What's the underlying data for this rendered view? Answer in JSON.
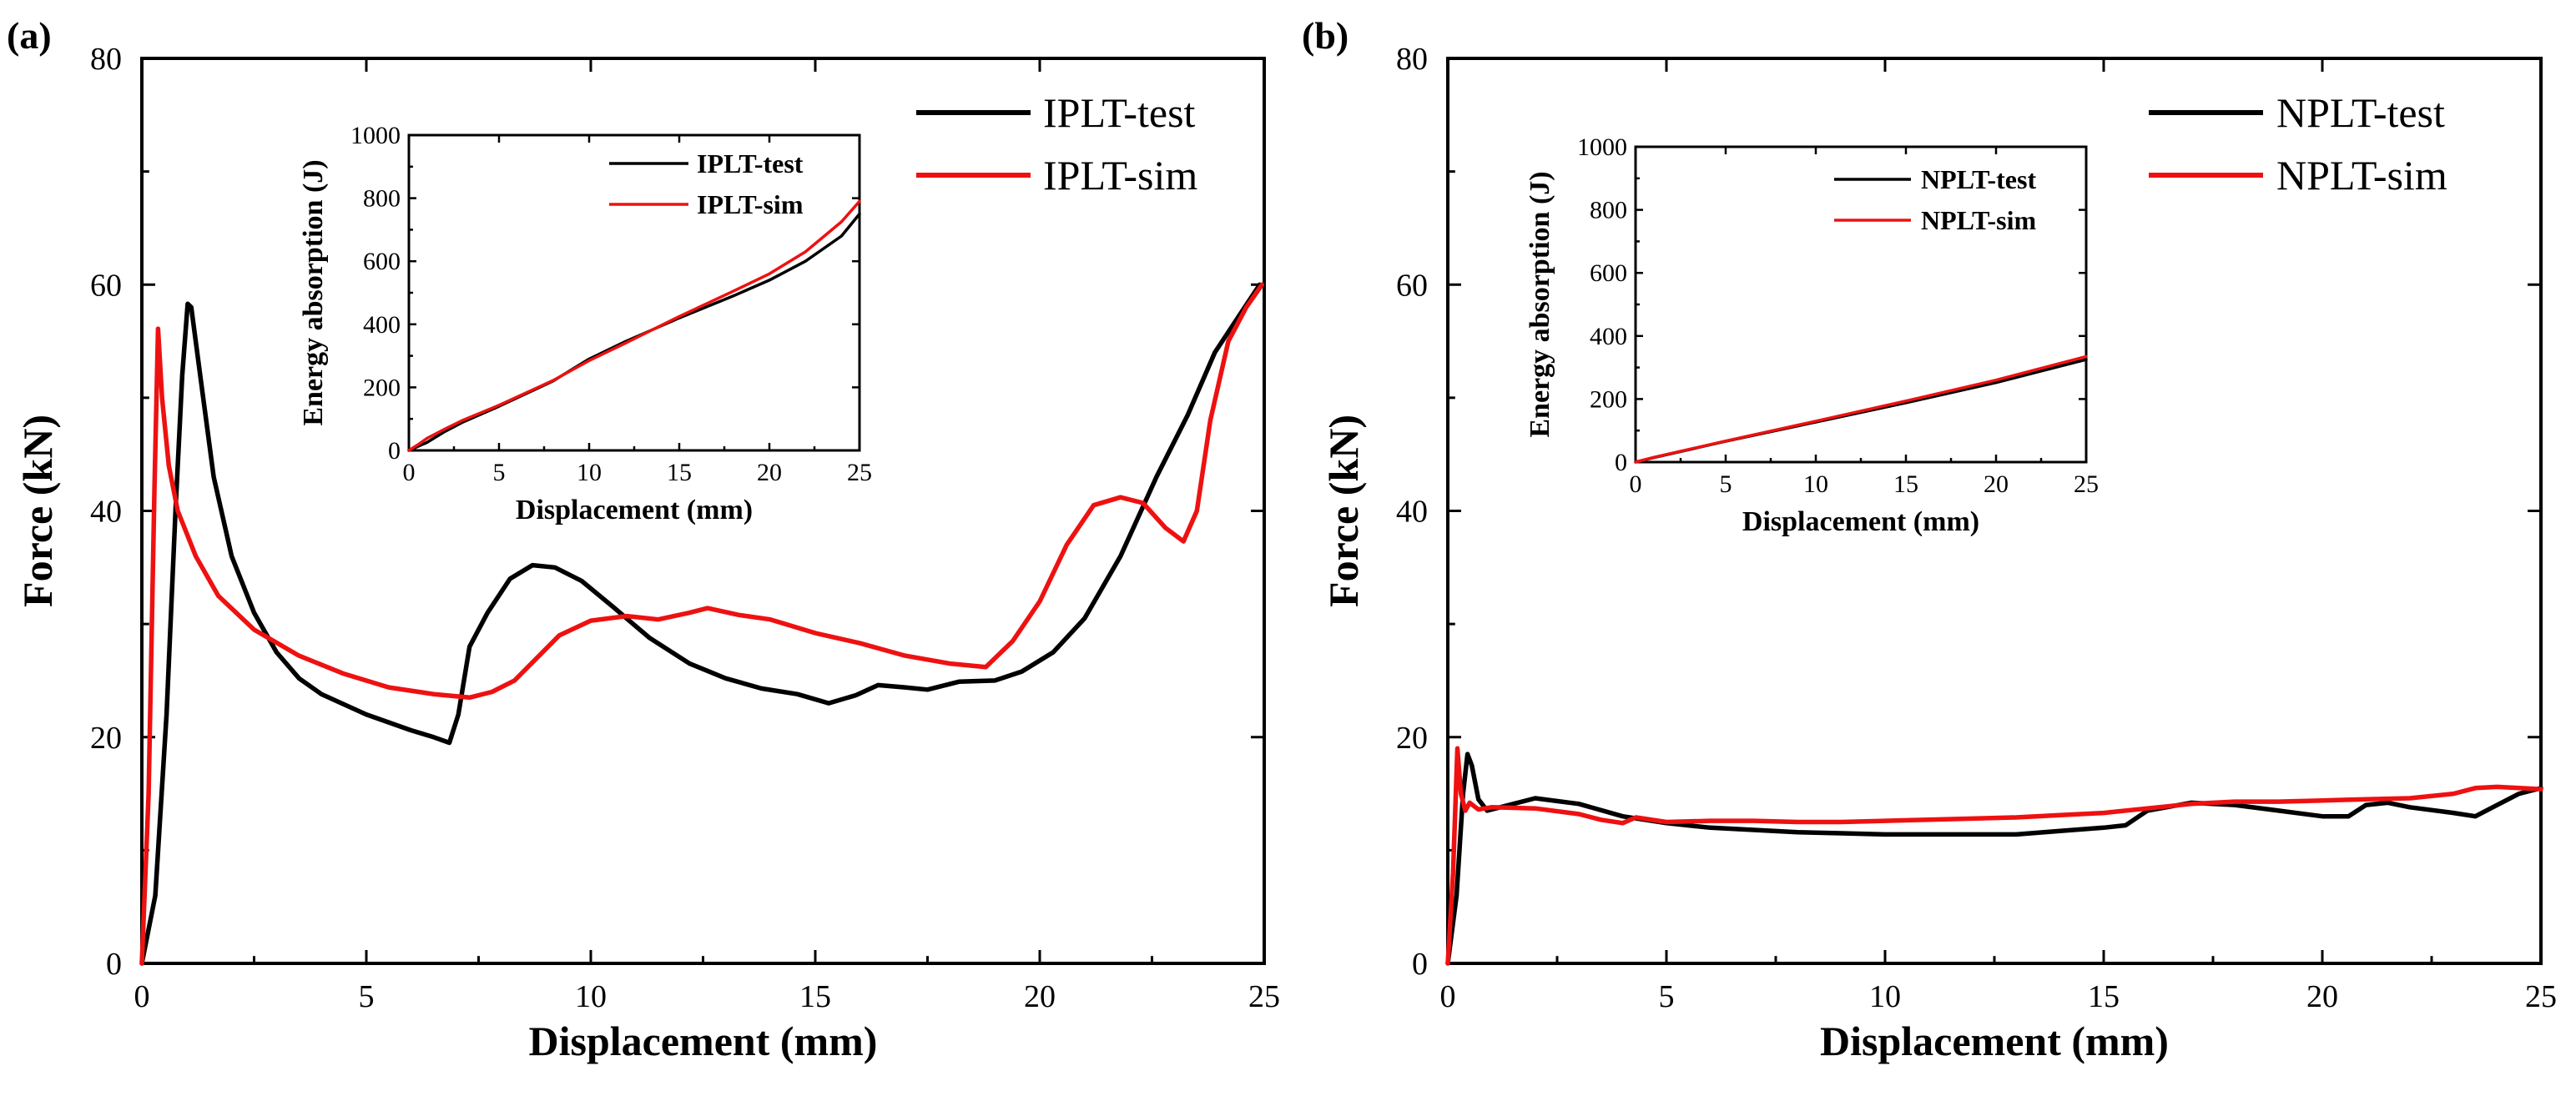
{
  "chart_data": [
    {
      "type": "line",
      "panel_label": "(a)",
      "xlabel": "Displacement (mm)",
      "ylabel": "Force (kN)",
      "xlim": [
        0,
        25
      ],
      "ylim": [
        0,
        80
      ],
      "xticks": [
        0,
        5,
        10,
        15,
        20,
        25
      ],
      "yticks": [
        0,
        20,
        40,
        60,
        80
      ],
      "legend_position": "top-right",
      "series": [
        {
          "name": "IPLT-test",
          "color": "#000000",
          "points": [
            [
              0,
              0
            ],
            [
              0.3,
              6
            ],
            [
              0.55,
              22
            ],
            [
              0.75,
              40
            ],
            [
              0.9,
              52
            ],
            [
              1.02,
              58.3
            ],
            [
              1.1,
              58
            ],
            [
              1.3,
              52
            ],
            [
              1.6,
              43
            ],
            [
              2.0,
              36
            ],
            [
              2.5,
              31
            ],
            [
              3.0,
              27.5
            ],
            [
              3.5,
              25.2
            ],
            [
              4.0,
              23.8
            ],
            [
              5.0,
              22
            ],
            [
              6.0,
              20.6
            ],
            [
              6.5,
              20
            ],
            [
              6.85,
              19.5
            ],
            [
              7.05,
              22
            ],
            [
              7.3,
              28
            ],
            [
              7.7,
              31
            ],
            [
              8.2,
              34
            ],
            [
              8.7,
              35.2
            ],
            [
              9.2,
              35
            ],
            [
              9.8,
              33.8
            ],
            [
              10.5,
              31.5
            ],
            [
              11.3,
              28.8
            ],
            [
              12.2,
              26.5
            ],
            [
              13.0,
              25.2
            ],
            [
              13.8,
              24.3
            ],
            [
              14.6,
              23.8
            ],
            [
              15.3,
              23
            ],
            [
              15.9,
              23.7
            ],
            [
              16.4,
              24.6
            ],
            [
              17.0,
              24.4
            ],
            [
              17.5,
              24.2
            ],
            [
              18.2,
              24.9
            ],
            [
              19.0,
              25
            ],
            [
              19.6,
              25.8
            ],
            [
              20.3,
              27.5
            ],
            [
              21.0,
              30.5
            ],
            [
              21.8,
              36
            ],
            [
              22.6,
              43
            ],
            [
              23.3,
              48.5
            ],
            [
              23.9,
              54
            ],
            [
              24.4,
              57
            ],
            [
              24.9,
              60
            ]
          ]
        },
        {
          "name": "IPLT-sim",
          "color": "#ee1111",
          "points": [
            [
              0,
              0
            ],
            [
              0.15,
              15
            ],
            [
              0.28,
              42
            ],
            [
              0.36,
              56.1
            ],
            [
              0.45,
              50
            ],
            [
              0.6,
              44
            ],
            [
              0.8,
              40
            ],
            [
              1.2,
              36
            ],
            [
              1.7,
              32.5
            ],
            [
              2.5,
              29.5
            ],
            [
              3.5,
              27.2
            ],
            [
              4.5,
              25.6
            ],
            [
              5.5,
              24.4
            ],
            [
              6.5,
              23.8
            ],
            [
              7.3,
              23.5
            ],
            [
              7.8,
              24
            ],
            [
              8.3,
              25
            ],
            [
              8.8,
              27
            ],
            [
              9.3,
              29
            ],
            [
              10.0,
              30.3
            ],
            [
              10.8,
              30.7
            ],
            [
              11.5,
              30.4
            ],
            [
              12.2,
              31
            ],
            [
              12.6,
              31.4
            ],
            [
              13.3,
              30.8
            ],
            [
              14.0,
              30.4
            ],
            [
              15.0,
              29.2
            ],
            [
              16.0,
              28.3
            ],
            [
              17.0,
              27.2
            ],
            [
              18.0,
              26.5
            ],
            [
              18.8,
              26.2
            ],
            [
              19.4,
              28.5
            ],
            [
              20.0,
              32
            ],
            [
              20.6,
              37
            ],
            [
              21.2,
              40.5
            ],
            [
              21.8,
              41.2
            ],
            [
              22.3,
              40.7
            ],
            [
              22.8,
              38.5
            ],
            [
              23.2,
              37.3
            ],
            [
              23.5,
              40
            ],
            [
              23.8,
              48
            ],
            [
              24.2,
              55
            ],
            [
              24.6,
              58
            ],
            [
              24.95,
              60
            ]
          ]
        }
      ],
      "inset": {
        "xlabel": "Displacement (mm)",
        "ylabel": "Energy absorption (J)",
        "xlim": [
          0,
          25
        ],
        "ylim": [
          0,
          1000
        ],
        "xticks": [
          0,
          5,
          10,
          15,
          20,
          25
        ],
        "yticks": [
          0,
          200,
          400,
          600,
          800,
          1000
        ],
        "series": [
          {
            "name": "IPLT-test",
            "color": "#000000",
            "points": [
              [
                0,
                0
              ],
              [
                1,
                25
              ],
              [
                2,
                60
              ],
              [
                3,
                90
              ],
              [
                5,
                140
              ],
              [
                8,
                220
              ],
              [
                10,
                290
              ],
              [
                12,
                345
              ],
              [
                15,
                420
              ],
              [
                18,
                490
              ],
              [
                20,
                540
              ],
              [
                22,
                600
              ],
              [
                24,
                680
              ],
              [
                25,
                750
              ]
            ]
          },
          {
            "name": "IPLT-sim",
            "color": "#ee1111",
            "points": [
              [
                0,
                0
              ],
              [
                0.5,
                18
              ],
              [
                1,
                38
              ],
              [
                2,
                68
              ],
              [
                3,
                96
              ],
              [
                5,
                143
              ],
              [
                8,
                222
              ],
              [
                10,
                285
              ],
              [
                12,
                340
              ],
              [
                15,
                425
              ],
              [
                18,
                505
              ],
              [
                20,
                560
              ],
              [
                22,
                630
              ],
              [
                24,
                725
              ],
              [
                25,
                790
              ]
            ]
          }
        ]
      }
    },
    {
      "type": "line",
      "panel_label": "(b)",
      "xlabel": "Displacement (mm)",
      "ylabel": "Force (kN)",
      "xlim": [
        0,
        25
      ],
      "ylim": [
        0,
        80
      ],
      "xticks": [
        0,
        5,
        10,
        15,
        20,
        25
      ],
      "yticks": [
        0,
        20,
        40,
        60,
        80
      ],
      "legend_position": "top-right",
      "series": [
        {
          "name": "NPLT-test",
          "color": "#000000",
          "points": [
            [
              0,
              0
            ],
            [
              0.2,
              6
            ],
            [
              0.35,
              15
            ],
            [
              0.45,
              18.5
            ],
            [
              0.55,
              17.5
            ],
            [
              0.7,
              14.5
            ],
            [
              0.9,
              13.5
            ],
            [
              1.2,
              13.8
            ],
            [
              2,
              14.6
            ],
            [
              3,
              14.1
            ],
            [
              4,
              13
            ],
            [
              5,
              12.4
            ],
            [
              6,
              12
            ],
            [
              7,
              11.8
            ],
            [
              8,
              11.6
            ],
            [
              9,
              11.5
            ],
            [
              10,
              11.4
            ],
            [
              11,
              11.4
            ],
            [
              12,
              11.4
            ],
            [
              13,
              11.4
            ],
            [
              14,
              11.7
            ],
            [
              15,
              12
            ],
            [
              15.5,
              12.2
            ],
            [
              16,
              13.5
            ],
            [
              17,
              14.2
            ],
            [
              18,
              14
            ],
            [
              19,
              13.5
            ],
            [
              20,
              13
            ],
            [
              20.6,
              13
            ],
            [
              21,
              14
            ],
            [
              21.5,
              14.2
            ],
            [
              22,
              13.8
            ],
            [
              23,
              13.3
            ],
            [
              23.5,
              13
            ],
            [
              24,
              14
            ],
            [
              24.5,
              15
            ],
            [
              25,
              15.5
            ]
          ]
        },
        {
          "name": "NPLT-sim",
          "color": "#ee1111",
          "points": [
            [
              0,
              0
            ],
            [
              0.12,
              8
            ],
            [
              0.22,
              19
            ],
            [
              0.3,
              15
            ],
            [
              0.4,
              13.5
            ],
            [
              0.5,
              14.2
            ],
            [
              0.7,
              13.6
            ],
            [
              1,
              13.8
            ],
            [
              2,
              13.7
            ],
            [
              3,
              13.2
            ],
            [
              3.5,
              12.7
            ],
            [
              4,
              12.4
            ],
            [
              4.3,
              12.9
            ],
            [
              5,
              12.5
            ],
            [
              6,
              12.6
            ],
            [
              7,
              12.6
            ],
            [
              8,
              12.5
            ],
            [
              9,
              12.5
            ],
            [
              10,
              12.6
            ],
            [
              11,
              12.7
            ],
            [
              12,
              12.8
            ],
            [
              13,
              12.9
            ],
            [
              14,
              13.1
            ],
            [
              15,
              13.3
            ],
            [
              16,
              13.7
            ],
            [
              17,
              14.1
            ],
            [
              18,
              14.3
            ],
            [
              19,
              14.3
            ],
            [
              20,
              14.4
            ],
            [
              21,
              14.5
            ],
            [
              22,
              14.6
            ],
            [
              23,
              15
            ],
            [
              23.5,
              15.5
            ],
            [
              24,
              15.6
            ],
            [
              25,
              15.4
            ]
          ]
        }
      ],
      "inset": {
        "xlabel": "Displacement (mm)",
        "ylabel": "Energy absorption (J)",
        "xlim": [
          0,
          25
        ],
        "ylim": [
          0,
          1000
        ],
        "xticks": [
          0,
          5,
          10,
          15,
          20,
          25
        ],
        "yticks": [
          0,
          200,
          400,
          600,
          800,
          1000
        ],
        "series": [
          {
            "name": "NPLT-test",
            "color": "#000000",
            "points": [
              [
                0,
                0
              ],
              [
                1,
                14
              ],
              [
                5,
                66
              ],
              [
                10,
                127
              ],
              [
                15,
                188
              ],
              [
                20,
                252
              ],
              [
                25,
                325
              ]
            ]
          },
          {
            "name": "NPLT-sim",
            "color": "#ee1111",
            "points": [
              [
                0,
                0
              ],
              [
                1,
                15
              ],
              [
                5,
                67
              ],
              [
                10,
                130
              ],
              [
                15,
                194
              ],
              [
                20,
                260
              ],
              [
                25,
                335
              ]
            ]
          }
        ]
      }
    }
  ]
}
